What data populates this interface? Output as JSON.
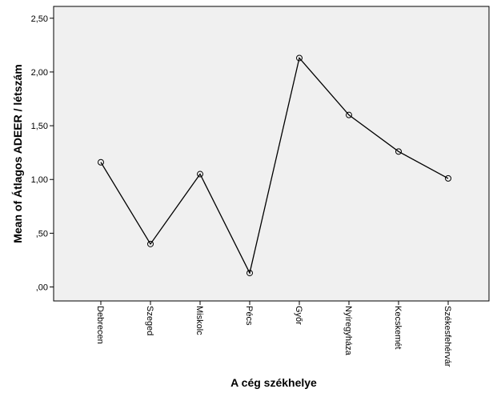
{
  "chart_data": {
    "type": "line",
    "x_label": "A cég székhelye",
    "y_label": "Mean of Átlagos ADEER / létszám",
    "categories": [
      "Debrecen",
      "Szeged",
      "Miskolc",
      "Pécs",
      "Győr",
      "Nyíregyháza",
      "Kecskemét",
      "Székesfehérvár"
    ],
    "values": [
      1.16,
      0.4,
      1.05,
      0.13,
      2.13,
      1.6,
      1.26,
      1.01
    ],
    "color": "#000000",
    "ylim": [
      -0.13,
      2.61
    ],
    "yticks": [
      {
        "value": 0,
        "label": ",00"
      },
      {
        "value": 0.5,
        "label": ",50"
      },
      {
        "value": 1,
        "label": "1,00"
      },
      {
        "value": 1.5,
        "label": "1,50"
      },
      {
        "value": 2,
        "label": "2,00"
      },
      {
        "value": 2.5,
        "label": "2,50"
      }
    ],
    "grid": false
  }
}
